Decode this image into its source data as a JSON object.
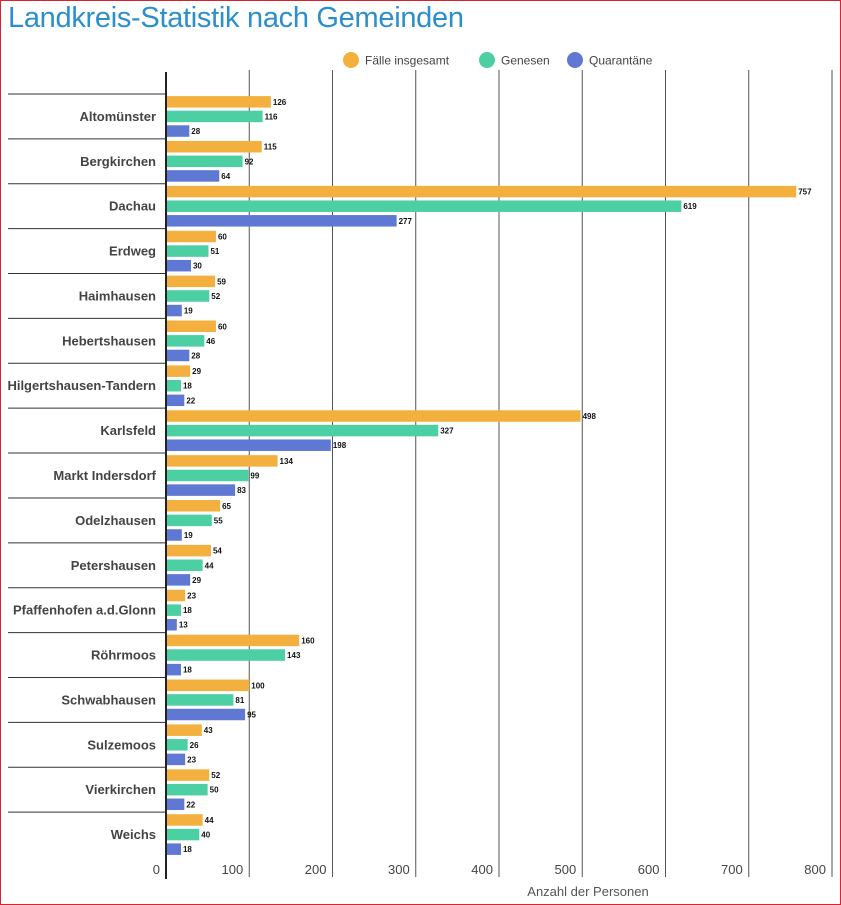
{
  "chart_data": {
    "type": "bar",
    "orientation": "horizontal",
    "title": "Landkreis-Statistik nach Gemeinden",
    "xlabel": "Anzahl der Personen",
    "ylabel": "",
    "xlim": [
      0,
      800
    ],
    "x_ticks": [
      0,
      100,
      200,
      300,
      400,
      500,
      600,
      700,
      800
    ],
    "grid": "vertical",
    "legend_position": "top-right",
    "categories": [
      "Altomünster",
      "Bergkirchen",
      "Dachau",
      "Erdweg",
      "Haimhausen",
      "Hebertshausen",
      "Hilgertshausen-Tandern",
      "Karlsfeld",
      "Markt Indersdorf",
      "Odelzhausen",
      "Petershausen",
      "Pfaffenhofen a.d.Glonn",
      "Röhrmoos",
      "Schwabhausen",
      "Sulzemoos",
      "Vierkirchen",
      "Weichs"
    ],
    "series": [
      {
        "name": "Fälle insgesamt",
        "color": "#f4b03e",
        "values": [
          126,
          115,
          757,
          60,
          59,
          60,
          29,
          498,
          134,
          65,
          54,
          23,
          160,
          100,
          43,
          52,
          44
        ]
      },
      {
        "name": "Genesen",
        "color": "#4ccfa3",
        "values": [
          116,
          92,
          619,
          51,
          52,
          46,
          18,
          327,
          99,
          55,
          44,
          18,
          143,
          81,
          26,
          50,
          40
        ]
      },
      {
        "name": "Quarantäne",
        "color": "#5f78d4",
        "values": [
          28,
          64,
          277,
          30,
          19,
          28,
          22,
          198,
          83,
          19,
          29,
          13,
          18,
          95,
          23,
          22,
          18
        ]
      }
    ]
  }
}
